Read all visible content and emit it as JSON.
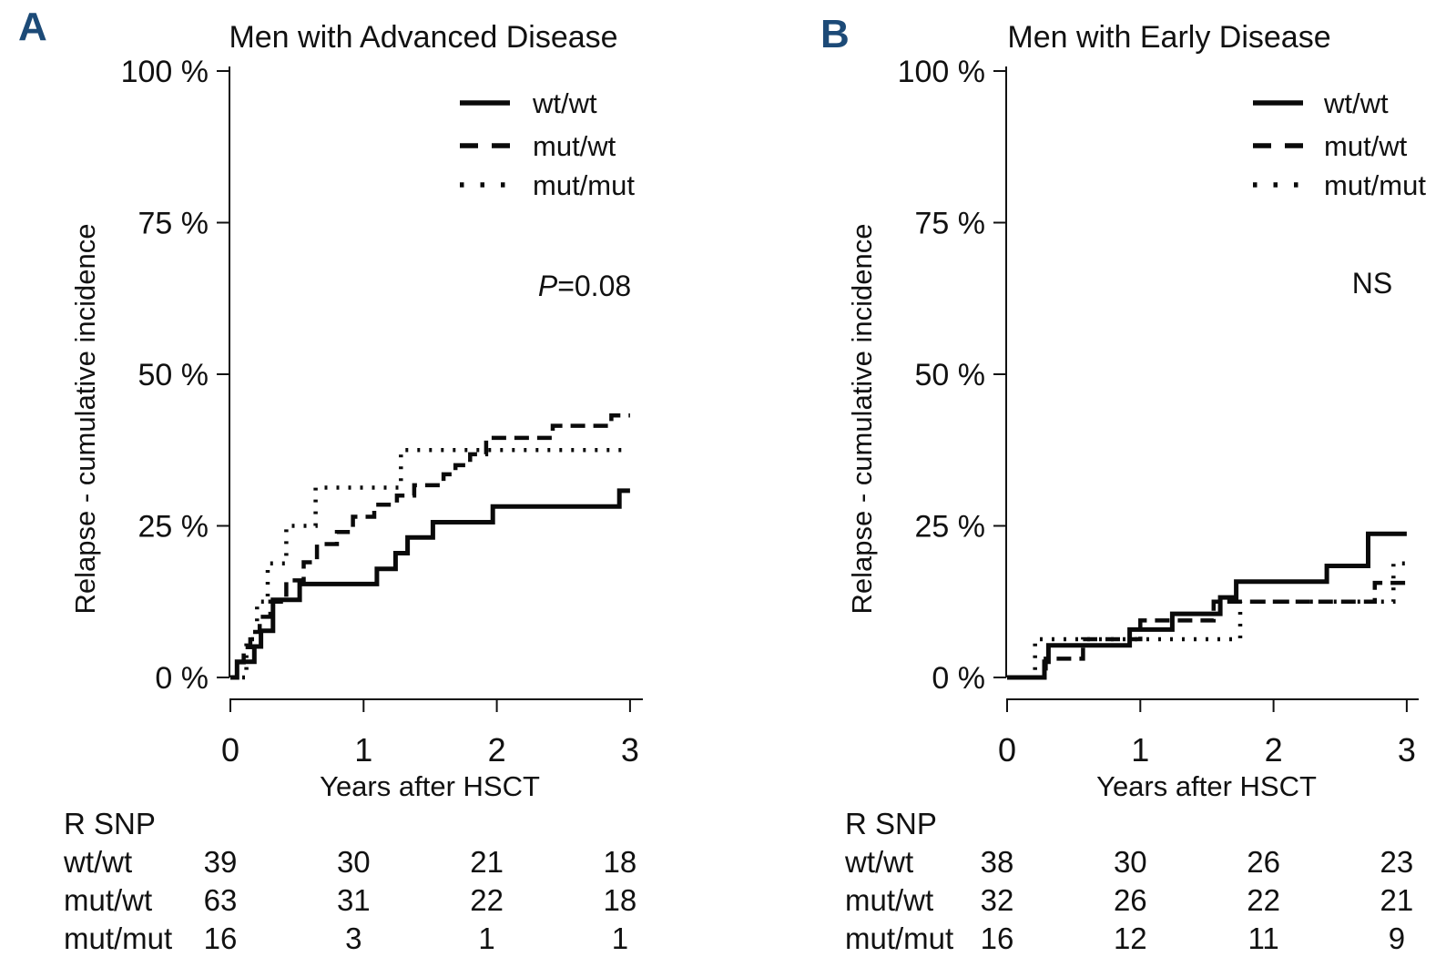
{
  "figure": {
    "background_color": "#ffffff",
    "panel_label_color": "#1c4a77",
    "curve_color": "#0a0a0a"
  },
  "chart_data": [
    {
      "type": "line",
      "subtype": "step-cumulative-incidence",
      "panel_label": "A",
      "title": "Men with Advanced Disease",
      "annotation": {
        "text": "P=0.08",
        "italic_first": true
      },
      "xlabel": "Years after HSCT",
      "ylabel": "Relapse  -  cumulative incidence",
      "xlim": [
        0,
        3
      ],
      "ylim": [
        0,
        100
      ],
      "x_ticks": [
        0,
        1,
        2,
        3
      ],
      "y_ticks": [
        0,
        25,
        50,
        75,
        100
      ],
      "y_tick_suffix": " %",
      "grid": false,
      "legend_position": "top-right",
      "series": [
        {
          "name": "wt/wt",
          "line_style": "solid",
          "x": [
            0,
            0.05,
            0.18,
            0.23,
            0.32,
            0.52,
            1.1,
            1.24,
            1.33,
            1.52,
            1.97,
            2.92,
            3.0
          ],
          "y": [
            0,
            2.6,
            5.1,
            7.7,
            12.8,
            15.4,
            17.9,
            20.5,
            23.1,
            25.6,
            28.2,
            30.8,
            30.8
          ]
        },
        {
          "name": "mut/wt",
          "line_style": "dashed",
          "x": [
            0,
            0.05,
            0.1,
            0.15,
            0.22,
            0.3,
            0.42,
            0.55,
            0.65,
            0.8,
            0.92,
            1.08,
            1.25,
            1.38,
            1.6,
            1.69,
            1.8,
            1.92,
            2.42,
            2.86,
            3.0
          ],
          "y": [
            0,
            2.5,
            5,
            7.5,
            10,
            12.5,
            16,
            19,
            22,
            24,
            26.5,
            28.5,
            30,
            31.7,
            33.5,
            35,
            36.8,
            39.5,
            41.5,
            43.2,
            43.2
          ]
        },
        {
          "name": "mut/mut",
          "line_style": "dotted",
          "x": [
            0,
            0.12,
            0.2,
            0.28,
            0.42,
            0.64,
            1.28,
            3.0
          ],
          "y": [
            0,
            6.3,
            12.5,
            18.8,
            25,
            31.3,
            37.5,
            37.5
          ]
        }
      ],
      "risk_table": {
        "header": "R SNP",
        "time_points": [
          0,
          1,
          2,
          3
        ],
        "rows": [
          {
            "label": "wt/wt",
            "values": [
              "39",
              "30",
              "21",
              "18"
            ]
          },
          {
            "label": "mut/wt",
            "values": [
              "63",
              "31",
              "22",
              "18"
            ]
          },
          {
            "label": "mut/mut",
            "values": [
              "16",
              "3",
              "1",
              "1"
            ]
          }
        ]
      }
    },
    {
      "type": "line",
      "subtype": "step-cumulative-incidence",
      "panel_label": "B",
      "title": "Men with Early Disease",
      "annotation": {
        "text": "NS",
        "italic_first": false
      },
      "xlabel": "Years after HSCT",
      "ylabel": "Relapse  -  cumulative incidence",
      "xlim": [
        0,
        3
      ],
      "ylim": [
        0,
        100
      ],
      "x_ticks": [
        0,
        1,
        2,
        3
      ],
      "y_ticks": [
        0,
        25,
        50,
        75,
        100
      ],
      "y_tick_suffix": " %",
      "grid": false,
      "legend_position": "top-right",
      "series": [
        {
          "name": "wt/wt",
          "line_style": "solid",
          "x": [
            0,
            0.28,
            0.31,
            0.92,
            1.24,
            1.6,
            1.72,
            2.4,
            2.71,
            3.0
          ],
          "y": [
            0,
            2.6,
            5.3,
            7.9,
            10.5,
            13.2,
            15.8,
            18.4,
            23.7,
            23.7
          ]
        },
        {
          "name": "mut/wt",
          "line_style": "dashed",
          "x": [
            0,
            0.29,
            0.57,
            1.0,
            1.55,
            2.76,
            3.0
          ],
          "y": [
            0,
            3.1,
            6.3,
            9.4,
            12.5,
            15.6,
            15.6
          ]
        },
        {
          "name": "mut/mut",
          "line_style": "dotted",
          "x": [
            0,
            0.21,
            1.75,
            2.9,
            3.0
          ],
          "y": [
            0,
            6.3,
            12.5,
            18.8,
            18.8
          ]
        }
      ],
      "risk_table": {
        "header": "R SNP",
        "time_points": [
          0,
          1,
          2,
          3
        ],
        "rows": [
          {
            "label": "wt/wt",
            "values": [
              "38",
              "30",
              "26",
              "23"
            ]
          },
          {
            "label": "mut/wt",
            "values": [
              "32",
              "26",
              "22",
              "21"
            ]
          },
          {
            "label": "mut/mut",
            "values": [
              "16",
              "12",
              "11",
              "9"
            ]
          }
        ]
      }
    }
  ]
}
